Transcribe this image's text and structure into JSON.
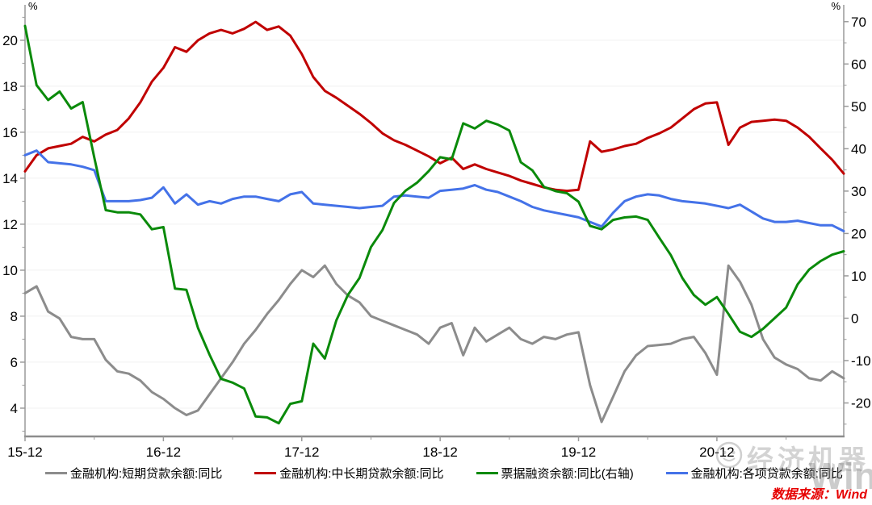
{
  "chart_data": {
    "type": "line",
    "title": "",
    "left_axis": {
      "unit": "%",
      "ticks_major": [
        4,
        6,
        8,
        10,
        12,
        14,
        16,
        18,
        20
      ],
      "ticks_minor": [
        3,
        5,
        7,
        9,
        11,
        13,
        15,
        17,
        19,
        21
      ],
      "range": [
        2.77,
        21.4
      ]
    },
    "right_axis": {
      "unit": "%",
      "ticks_major": [
        -20,
        -10,
        0,
        10,
        20,
        30,
        40,
        50,
        60,
        70
      ],
      "ticks_minor": [
        -25,
        -15,
        -5,
        5,
        15,
        25,
        35,
        45,
        55,
        65
      ],
      "range": [
        -27.9,
        73.2
      ]
    },
    "x_tick_labels": [
      "15-12",
      "16-12",
      "17-12",
      "18-12",
      "19-12",
      "20-12"
    ],
    "x_ticks_major_idx": [
      0,
      12,
      24,
      36,
      48,
      60
    ],
    "x_ticks_minor_idx": [
      6,
      18,
      30,
      42,
      54,
      66
    ],
    "grid": "horizontal-major",
    "legend_position": "bottom",
    "months": [
      "2015-12",
      "2016-01",
      "2016-02",
      "2016-03",
      "2016-04",
      "2016-05",
      "2016-06",
      "2016-07",
      "2016-08",
      "2016-09",
      "2016-10",
      "2016-11",
      "2016-12",
      "2017-01",
      "2017-02",
      "2017-03",
      "2017-04",
      "2017-05",
      "2017-06",
      "2017-07",
      "2017-08",
      "2017-09",
      "2017-10",
      "2017-11",
      "2017-12",
      "2018-01",
      "2018-02",
      "2018-03",
      "2018-04",
      "2018-05",
      "2018-06",
      "2018-07",
      "2018-08",
      "2018-09",
      "2018-10",
      "2018-11",
      "2018-12",
      "2019-01",
      "2019-02",
      "2019-03",
      "2019-04",
      "2019-05",
      "2019-06",
      "2019-07",
      "2019-08",
      "2019-09",
      "2019-10",
      "2019-11",
      "2019-12",
      "2020-01",
      "2020-02",
      "2020-03",
      "2020-04",
      "2020-05",
      "2020-06",
      "2020-07",
      "2020-08",
      "2020-09",
      "2020-10",
      "2020-11",
      "2020-12",
      "2021-01",
      "2021-02",
      "2021-03",
      "2021-04",
      "2021-05",
      "2021-06",
      "2021-07",
      "2021-08",
      "2021-09",
      "2021-10",
      "2021-11"
    ],
    "series": [
      {
        "key": "shortterm",
        "name": "金融机构:短期贷款余额:同比",
        "axis": "left",
        "color": "#8c8c8c",
        "values": [
          9.0,
          9.3,
          8.2,
          7.9,
          7.1,
          7.0,
          7.0,
          6.1,
          5.6,
          5.5,
          5.2,
          4.7,
          4.4,
          4.0,
          3.7,
          3.9,
          4.6,
          5.3,
          6.0,
          6.8,
          7.4,
          8.1,
          8.7,
          9.4,
          10.0,
          9.7,
          10.2,
          9.4,
          8.9,
          8.6,
          8.0,
          7.8,
          7.6,
          7.4,
          7.2,
          6.8,
          7.5,
          7.7,
          6.3,
          7.5,
          6.9,
          7.2,
          7.5,
          7.0,
          6.8,
          7.1,
          7.0,
          7.2,
          7.3,
          5.0,
          3.4,
          4.5,
          5.6,
          6.3,
          6.7,
          6.75,
          6.8,
          7.0,
          7.1,
          6.4,
          5.45,
          10.2,
          9.5,
          8.5,
          7.0,
          6.2,
          5.9,
          5.7,
          5.3,
          5.2,
          5.6,
          5.3
        ]
      },
      {
        "key": "mlt",
        "name": "金融机构:中长期贷款余额:同比",
        "axis": "left",
        "color": "#c00000",
        "values": [
          14.3,
          15.0,
          15.3,
          15.4,
          15.5,
          15.8,
          15.6,
          15.9,
          16.1,
          16.6,
          17.3,
          18.2,
          18.8,
          19.7,
          19.5,
          20.0,
          20.3,
          20.45,
          20.3,
          20.5,
          20.8,
          20.45,
          20.6,
          20.2,
          19.4,
          18.4,
          17.8,
          17.5,
          17.15,
          16.8,
          16.4,
          15.95,
          15.65,
          15.45,
          15.2,
          14.95,
          14.65,
          14.9,
          14.4,
          14.6,
          14.4,
          14.25,
          14.1,
          13.9,
          13.75,
          13.6,
          13.5,
          13.45,
          13.5,
          15.6,
          15.15,
          15.25,
          15.4,
          15.5,
          15.75,
          15.95,
          16.2,
          16.6,
          17.0,
          17.25,
          17.3,
          15.45,
          16.2,
          16.45,
          16.5,
          16.55,
          16.5,
          16.2,
          15.8,
          15.3,
          14.8,
          14.2
        ]
      },
      {
        "key": "loans_total",
        "name": "金融机构:各项贷款余额:同比",
        "axis": "left",
        "color": "#4472e8",
        "values": [
          15.0,
          15.2,
          14.7,
          14.65,
          14.6,
          14.5,
          14.35,
          13.0,
          13.0,
          13.0,
          13.05,
          13.15,
          13.6,
          12.9,
          13.3,
          12.85,
          13.0,
          12.9,
          13.1,
          13.2,
          13.2,
          13.1,
          13.0,
          13.3,
          13.4,
          12.9,
          12.85,
          12.8,
          12.75,
          12.7,
          12.75,
          12.8,
          13.2,
          13.25,
          13.2,
          13.15,
          13.45,
          13.5,
          13.55,
          13.7,
          13.5,
          13.4,
          13.2,
          13.0,
          12.75,
          12.6,
          12.5,
          12.4,
          12.3,
          12.1,
          11.9,
          12.5,
          13.0,
          13.2,
          13.3,
          13.25,
          13.1,
          13.0,
          12.95,
          12.9,
          12.8,
          12.7,
          12.85,
          12.55,
          12.25,
          12.1,
          12.1,
          12.15,
          12.05,
          11.95,
          11.95,
          11.7
        ]
      },
      {
        "key": "bills",
        "name": "票据融资余额:同比(右轴)",
        "axis": "right",
        "color": "#0a8a0a",
        "values": [
          69,
          55,
          51.5,
          53.5,
          49.5,
          51,
          38,
          25.5,
          25,
          25,
          24.5,
          21,
          21.5,
          7.0,
          6.7,
          -2.3,
          -8.6,
          -14.3,
          -15.2,
          -16.6,
          -23.2,
          -23.4,
          -24.8,
          -20.2,
          -19.6,
          -6.0,
          -9.5,
          -0.5,
          5.5,
          9.5,
          16.8,
          20.8,
          27.2,
          30.1,
          32.0,
          34.7,
          38.0,
          37.5,
          46.0,
          44.8,
          46.6,
          45.7,
          44.3,
          36.8,
          34.9,
          31.0,
          30.0,
          29.5,
          27.5,
          21.8,
          21.0,
          23.2,
          23.8,
          24.0,
          23.2,
          19.0,
          14.9,
          9.5,
          5.5,
          3.2,
          5.0,
          1.0,
          -3.2,
          -4.4,
          -2.5,
          0.0,
          2.5,
          8.0,
          11.5,
          13.5,
          15.0,
          15.8
        ]
      }
    ]
  },
  "legend": {
    "items": [
      {
        "label": "金融机构:短期贷款余额:同比",
        "color": "#8c8c8c"
      },
      {
        "label": "金融机构:中长期贷款余额:同比",
        "color": "#c00000"
      },
      {
        "label": "票据融资余额:同比(右轴)",
        "color": "#0a8a0a"
      },
      {
        "label": "金融机构:各项贷款余额:同比",
        "color": "#4472e8"
      }
    ]
  },
  "source": "数据来源：Wind",
  "watermark": {
    "brand": "经济机器",
    "wind_text": "Wind"
  },
  "colors": {
    "axis": "#9a9a9a",
    "grid": "#f0f0f0",
    "tick_label": "#000000"
  }
}
